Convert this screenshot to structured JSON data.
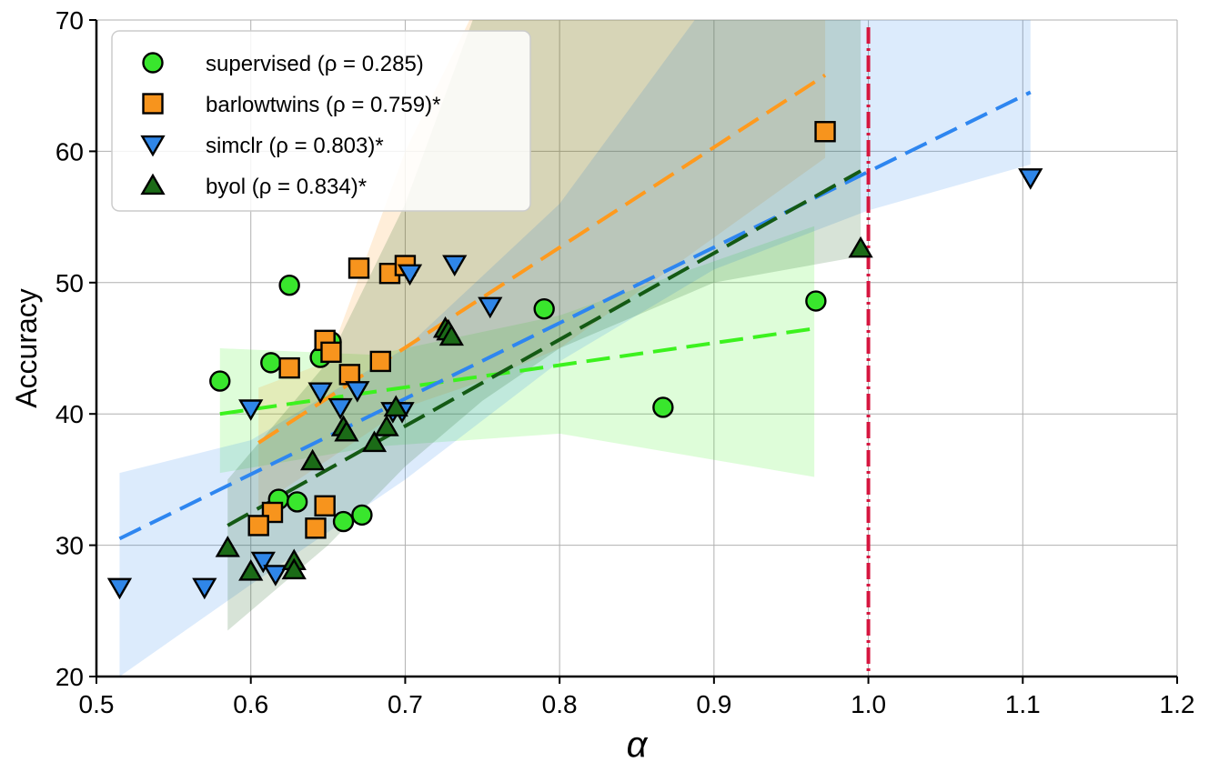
{
  "chart_data": {
    "type": "scatter",
    "xlabel": "α",
    "ylabel": "Accuracy",
    "xlim": [
      0.5,
      1.2
    ],
    "ylim": [
      20,
      70
    ],
    "xticks": [
      "0.5",
      "0.6",
      "0.7",
      "0.8",
      "0.9",
      "1.0",
      "1.1",
      "1.2"
    ],
    "yticks": [
      "20",
      "30",
      "40",
      "50",
      "60",
      "70"
    ],
    "grid": true,
    "legend_position": "top-left",
    "reference_line": {
      "x": 1.0,
      "color": "#d6163f",
      "style": "dash-dot"
    },
    "series": [
      {
        "name": "supervised",
        "legend_label": "supervised (ρ = 0.285)",
        "marker": "circle",
        "color": "#39e62d",
        "line_color": "#3cf21e",
        "fit": {
          "x": [
            0.58,
            0.965
          ],
          "y": [
            40.0,
            46.5
          ]
        },
        "band": {
          "x": [
            0.58,
            0.68,
            0.8,
            0.965
          ],
          "upper": [
            45.0,
            44.5,
            47.5,
            54.3
          ],
          "lower": [
            35.5,
            37.5,
            38.5,
            35.2
          ]
        },
        "points": [
          [
            0.58,
            42.5
          ],
          [
            0.625,
            49.8
          ],
          [
            0.613,
            43.9
          ],
          [
            0.645,
            44.3
          ],
          [
            0.652,
            45.5
          ],
          [
            0.618,
            33.5
          ],
          [
            0.63,
            33.3
          ],
          [
            0.66,
            31.8
          ],
          [
            0.672,
            32.3
          ],
          [
            0.79,
            48.0
          ],
          [
            0.867,
            40.5
          ],
          [
            0.966,
            48.6
          ]
        ]
      },
      {
        "name": "barlowtwins",
        "legend_label": "barlowtwins (ρ = 0.759)*",
        "marker": "square",
        "color": "#f7941d",
        "line_color": "#ff9a1e",
        "fit": {
          "x": [
            0.605,
            0.972
          ],
          "y": [
            37.8,
            65.8
          ]
        },
        "band": {
          "x": [
            0.605,
            0.65,
            0.7,
            0.75,
            0.8,
            0.972
          ],
          "upper": [
            42.0,
            44.0,
            60.0,
            72.0,
            72.0,
            72.0
          ],
          "lower": [
            33.0,
            36.5,
            40.5,
            42.5,
            45.0,
            59.5
          ]
        },
        "points": [
          [
            0.67,
            51.1
          ],
          [
            0.69,
            50.7
          ],
          [
            0.7,
            51.3
          ],
          [
            0.648,
            45.6
          ],
          [
            0.652,
            44.7
          ],
          [
            0.664,
            43.0
          ],
          [
            0.684,
            44.0
          ],
          [
            0.625,
            43.5
          ],
          [
            0.648,
            33.0
          ],
          [
            0.614,
            32.5
          ],
          [
            0.605,
            31.5
          ],
          [
            0.642,
            31.3
          ],
          [
            0.972,
            61.5
          ]
        ]
      },
      {
        "name": "simclr",
        "legend_label": "simclr (ρ = 0.803)*",
        "marker": "triangle-down",
        "color": "#2f86e8",
        "line_color": "#2e86f0",
        "fit": {
          "x": [
            0.515,
            1.105
          ],
          "y": [
            30.5,
            64.5
          ]
        },
        "band": {
          "x": [
            0.515,
            0.6,
            0.7,
            0.8,
            0.9,
            1.0,
            1.105
          ],
          "upper": [
            35.5,
            38.0,
            45.0,
            56.0,
            72.0,
            72.0,
            72.0
          ],
          "lower": [
            20.0,
            27.0,
            35.0,
            44.0,
            51.0,
            55.5,
            59.0
          ]
        },
        "points": [
          [
            0.515,
            26.8
          ],
          [
            0.57,
            26.8
          ],
          [
            0.6,
            40.4
          ],
          [
            0.608,
            28.8
          ],
          [
            0.616,
            27.8
          ],
          [
            0.645,
            41.7
          ],
          [
            0.658,
            40.5
          ],
          [
            0.669,
            41.8
          ],
          [
            0.692,
            40.2
          ],
          [
            0.698,
            40.2
          ],
          [
            0.703,
            50.7
          ],
          [
            0.732,
            51.4
          ],
          [
            0.755,
            48.2
          ],
          [
            1.105,
            58.0
          ]
        ]
      },
      {
        "name": "byol",
        "legend_label": "byol (ρ = 0.834)*",
        "marker": "triangle-up",
        "color": "#1b6b17",
        "line_color": "#145a14",
        "fit": {
          "x": [
            0.585,
            0.995
          ],
          "y": [
            31.5,
            58.5
          ]
        },
        "band": {
          "x": [
            0.585,
            0.65,
            0.7,
            0.75,
            0.8,
            0.9,
            0.995
          ],
          "upper": [
            35.0,
            44.0,
            56.0,
            72.0,
            72.0,
            72.0,
            72.0
          ],
          "lower": [
            23.5,
            30.0,
            36.0,
            41.0,
            45.0,
            50.0,
            52.0
          ]
        },
        "points": [
          [
            0.585,
            29.8
          ],
          [
            0.6,
            28.0
          ],
          [
            0.628,
            28.8
          ],
          [
            0.628,
            28.1
          ],
          [
            0.64,
            36.4
          ],
          [
            0.66,
            39.0
          ],
          [
            0.662,
            38.6
          ],
          [
            0.68,
            37.8
          ],
          [
            0.688,
            39.0
          ],
          [
            0.694,
            40.5
          ],
          [
            0.726,
            46.5
          ],
          [
            0.728,
            46.3
          ],
          [
            0.73,
            45.9
          ],
          [
            0.995,
            52.6
          ]
        ]
      }
    ]
  }
}
